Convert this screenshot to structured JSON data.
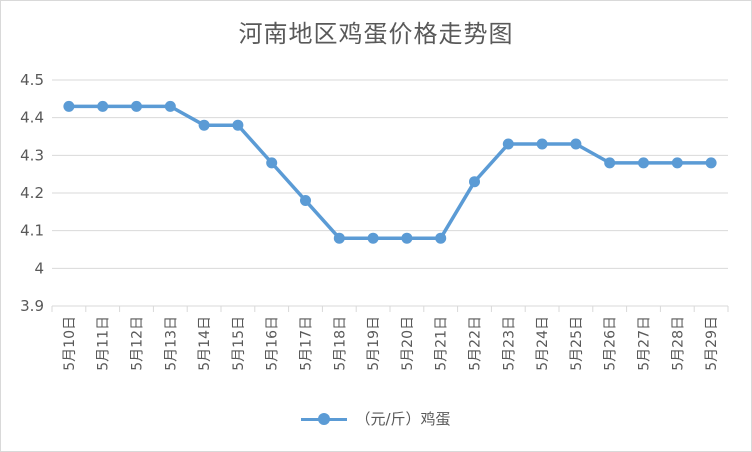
{
  "chart_data": {
    "type": "line",
    "title": "河南地区鸡蛋价格走势图",
    "categories": [
      "5月10日",
      "5月11日",
      "5月12日",
      "5月13日",
      "5月14日",
      "5月15日",
      "5月16日",
      "5月17日",
      "5月18日",
      "5月19日",
      "5月20日",
      "5月21日",
      "5月22日",
      "5月23日",
      "5月24日",
      "5月25日",
      "5月26日",
      "5月27日",
      "5月28日",
      "5月29日"
    ],
    "series": [
      {
        "name": "（元/斤）鸡蛋",
        "values": [
          4.43,
          4.43,
          4.43,
          4.43,
          4.38,
          4.38,
          4.28,
          4.18,
          4.08,
          4.08,
          4.08,
          4.08,
          4.23,
          4.33,
          4.33,
          4.33,
          4.28,
          4.28,
          4.28,
          4.28
        ]
      }
    ],
    "ylim": [
      3.9,
      4.5
    ],
    "yticks": [
      "3.9",
      "4",
      "4.1",
      "4.2",
      "4.3",
      "4.4",
      "4.5"
    ],
    "grid": true,
    "legend": "bottom",
    "colors": {
      "series": "#5b9bd5",
      "grid": "#d9d9d9",
      "text": "#595959"
    }
  }
}
